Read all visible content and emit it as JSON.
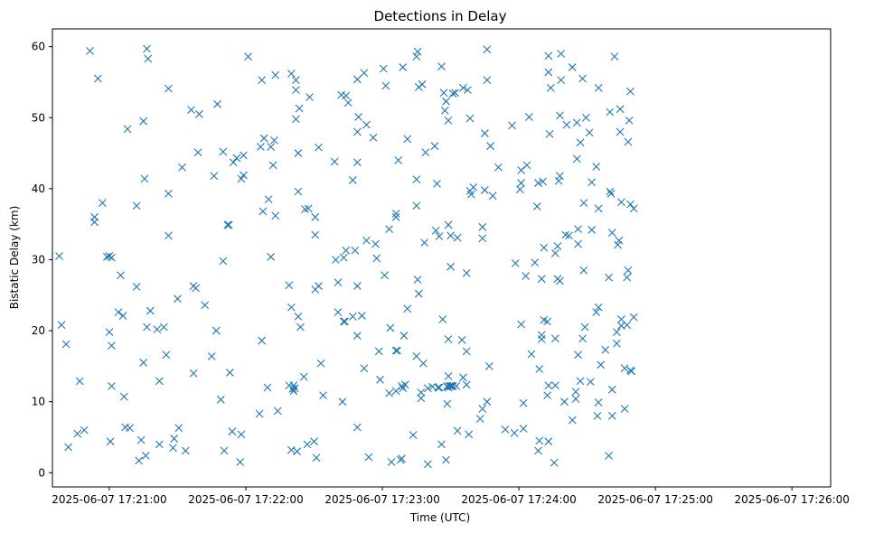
{
  "chart_data": {
    "type": "scatter",
    "title": "Detections in Delay",
    "xlabel": "Time (UTC)",
    "ylabel": "Bistatic Delay (km)",
    "marker": "x",
    "color": "#1f77b4",
    "x_unit": "seconds after 2025-06-07 17:21:00",
    "xlim": [
      -25,
      317
    ],
    "ylim": [
      -2,
      62.5
    ],
    "x_ticks": [
      {
        "value": 0,
        "label": "2025-06-07 17:21:00"
      },
      {
        "value": 60,
        "label": "2025-06-07 17:22:00"
      },
      {
        "value": 120,
        "label": "2025-06-07 17:23:00"
      },
      {
        "value": 180,
        "label": "2025-06-07 17:24:00"
      },
      {
        "value": 240,
        "label": "2025-06-07 17:25:00"
      },
      {
        "value": 300,
        "label": "2025-06-07 17:26:00"
      }
    ],
    "y_ticks": [
      0,
      10,
      20,
      30,
      40,
      50,
      60
    ],
    "points": [
      [
        -22,
        30.5
      ],
      [
        -21,
        20.8
      ],
      [
        -19,
        18.1
      ],
      [
        -18,
        3.6
      ],
      [
        -14,
        5.5
      ],
      [
        -13,
        12.9
      ],
      [
        -11,
        6
      ],
      [
        -8.5,
        59.4
      ],
      [
        -6.5,
        36
      ],
      [
        -6.5,
        35.3
      ],
      [
        -5,
        55.5
      ],
      [
        -3,
        38
      ],
      [
        -1,
        30.4
      ],
      [
        0,
        19.8
      ],
      [
        0.5,
        4.4
      ],
      [
        0,
        30.5
      ],
      [
        1,
        30.3
      ],
      [
        1,
        12.2
      ],
      [
        1,
        17.9
      ],
      [
        4,
        22.6
      ],
      [
        5,
        27.8
      ],
      [
        6,
        22.1
      ],
      [
        6.5,
        10.7
      ],
      [
        7,
        6.4
      ],
      [
        8,
        48.4
      ],
      [
        9,
        6.3
      ],
      [
        12,
        26.2
      ],
      [
        12,
        37.6
      ],
      [
        13,
        1.7
      ],
      [
        14,
        4.6
      ],
      [
        15,
        15.5
      ],
      [
        15,
        49.5
      ],
      [
        15.5,
        41.4
      ],
      [
        16,
        2.4
      ],
      [
        16.5,
        59.7
      ],
      [
        16.5,
        20.5
      ],
      [
        17,
        58.3
      ],
      [
        18,
        22.8
      ],
      [
        21,
        20.2
      ],
      [
        22,
        12.9
      ],
      [
        22,
        4
      ],
      [
        24,
        20.5
      ],
      [
        25,
        16.6
      ],
      [
        26,
        54.1
      ],
      [
        26,
        39.3
      ],
      [
        26,
        33.4
      ],
      [
        28,
        3.5
      ],
      [
        28.5,
        4.8
      ],
      [
        30,
        24.5
      ],
      [
        30.5,
        6.3
      ],
      [
        32,
        43
      ],
      [
        33.5,
        3.1
      ],
      [
        36,
        51.1
      ],
      [
        37,
        14
      ],
      [
        37,
        26.3
      ],
      [
        38,
        26
      ],
      [
        39,
        45.1
      ],
      [
        39.5,
        50.5
      ],
      [
        42,
        23.6
      ],
      [
        45,
        16.4
      ],
      [
        46,
        41.8
      ],
      [
        47,
        20
      ],
      [
        47.5,
        51.9
      ],
      [
        49,
        10.3
      ],
      [
        50,
        29.8
      ],
      [
        50,
        45.2
      ],
      [
        50.5,
        3.1
      ],
      [
        52,
        34.9
      ],
      [
        52.5,
        34.9
      ],
      [
        53,
        14.1
      ],
      [
        54,
        5.8
      ],
      [
        54.5,
        43.7
      ],
      [
        56,
        44.3
      ],
      [
        57.5,
        1.5
      ],
      [
        58,
        41.4
      ],
      [
        58,
        5.4
      ],
      [
        59,
        41.9
      ],
      [
        59,
        44.7
      ],
      [
        61,
        58.6
      ],
      [
        66,
        8.3
      ],
      [
        66.5,
        45.9
      ],
      [
        67,
        18.6
      ],
      [
        67,
        55.3
      ],
      [
        67.5,
        36.8
      ],
      [
        68,
        47.1
      ],
      [
        69.5,
        12
      ],
      [
        70,
        38.5
      ],
      [
        71,
        30.4
      ],
      [
        71,
        45.9
      ],
      [
        72,
        43.3
      ],
      [
        72.5,
        46.8
      ],
      [
        73,
        36.2
      ],
      [
        73,
        56
      ],
      [
        74,
        8.7
      ],
      [
        79,
        12.3
      ],
      [
        79,
        26.4
      ],
      [
        80,
        56.2
      ],
      [
        80,
        23.3
      ],
      [
        80,
        3.2
      ],
      [
        80.5,
        11.8
      ],
      [
        81,
        12.3
      ],
      [
        81,
        11.5
      ],
      [
        81.5,
        11.9
      ],
      [
        82,
        55.3
      ],
      [
        82,
        53.9
      ],
      [
        82,
        49.8
      ],
      [
        82.5,
        3
      ],
      [
        83,
        39.6
      ],
      [
        83,
        22
      ],
      [
        83,
        45
      ],
      [
        83.5,
        51.3
      ],
      [
        84,
        20.5
      ],
      [
        85.5,
        13.5
      ],
      [
        86,
        37.1
      ],
      [
        87,
        4
      ],
      [
        87.5,
        37.2
      ],
      [
        88,
        52.9
      ],
      [
        90,
        4.4
      ],
      [
        90.5,
        25.8
      ],
      [
        90.5,
        33.5
      ],
      [
        90.5,
        36
      ],
      [
        91,
        2.1
      ],
      [
        92,
        26.3
      ],
      [
        92,
        45.8
      ],
      [
        93,
        15.4
      ],
      [
        94,
        10.9
      ],
      [
        99,
        43.8
      ],
      [
        99.5,
        30
      ],
      [
        100.5,
        26.8
      ],
      [
        100.5,
        22.6
      ],
      [
        102,
        53.2
      ],
      [
        102.5,
        10
      ],
      [
        103,
        30.3
      ],
      [
        103,
        21.3
      ],
      [
        103.5,
        21.3
      ],
      [
        104,
        53.1
      ],
      [
        104,
        31.3
      ],
      [
        105,
        52.1
      ],
      [
        107,
        22
      ],
      [
        107,
        41.2
      ],
      [
        108,
        31.3
      ],
      [
        109,
        43.7
      ],
      [
        109,
        55.4
      ],
      [
        109,
        48
      ],
      [
        109,
        26.3
      ],
      [
        109,
        19.3
      ],
      [
        109,
        6.4
      ],
      [
        109.5,
        50.1
      ],
      [
        111,
        22.1
      ],
      [
        112,
        56.3
      ],
      [
        112,
        14.7
      ],
      [
        113,
        49
      ],
      [
        113,
        32.7
      ],
      [
        114,
        2.2
      ],
      [
        116,
        47.2
      ],
      [
        117,
        32.2
      ],
      [
        117.5,
        30.2
      ],
      [
        118.5,
        17.1
      ],
      [
        119,
        13.1
      ],
      [
        120.5,
        56.9
      ],
      [
        121,
        27.8
      ],
      [
        121.5,
        54.5
      ],
      [
        123,
        34.3
      ],
      [
        123,
        11.2
      ],
      [
        123.5,
        20.4
      ],
      [
        124,
        1.5
      ],
      [
        126,
        36
      ],
      [
        126,
        11.5
      ],
      [
        126,
        17.2
      ],
      [
        126,
        36.5
      ],
      [
        126.5,
        17.2
      ],
      [
        127,
        44
      ],
      [
        128,
        1.8
      ],
      [
        128.5,
        2
      ],
      [
        128.5,
        12.2
      ],
      [
        129,
        57.1
      ],
      [
        129,
        11.9
      ],
      [
        129.5,
        19.3
      ],
      [
        130,
        12.4
      ],
      [
        131,
        23.1
      ],
      [
        131,
        47
      ],
      [
        133.5,
        5.3
      ],
      [
        135,
        16.4
      ],
      [
        135,
        37.6
      ],
      [
        135,
        41.3
      ],
      [
        135,
        58.6
      ],
      [
        135.5,
        27.2
      ],
      [
        135.5,
        59.3
      ],
      [
        136,
        25.2
      ],
      [
        136,
        54.3
      ],
      [
        137,
        10.5
      ],
      [
        137,
        11.3
      ],
      [
        137.5,
        54.7
      ],
      [
        138,
        15.4
      ],
      [
        138.5,
        32.4
      ],
      [
        139,
        45.1
      ],
      [
        140,
        1.2
      ],
      [
        140,
        11.9
      ],
      [
        142,
        12.1
      ],
      [
        143,
        46
      ],
      [
        143.5,
        34.1
      ],
      [
        144,
        40.7
      ],
      [
        144.5,
        12
      ],
      [
        145,
        33.3
      ],
      [
        145,
        12
      ],
      [
        146,
        4
      ],
      [
        146,
        57.2
      ],
      [
        146.5,
        21.6
      ],
      [
        147,
        53.5
      ],
      [
        147.5,
        51
      ],
      [
        148,
        52.3
      ],
      [
        148,
        1.8
      ],
      [
        148.5,
        9.7
      ],
      [
        148.5,
        12.1
      ],
      [
        148.5,
        12.2
      ],
      [
        149,
        12
      ],
      [
        149,
        13.6
      ],
      [
        149,
        18.8
      ],
      [
        149,
        34.9
      ],
      [
        149,
        49.6
      ],
      [
        149.5,
        12.2
      ],
      [
        150,
        12.2
      ],
      [
        150,
        29
      ],
      [
        150,
        33.4
      ],
      [
        150.5,
        12.2
      ],
      [
        151,
        12.2
      ],
      [
        151,
        53.4
      ],
      [
        152,
        53.5
      ],
      [
        152.5,
        12.2
      ],
      [
        153,
        33.1
      ],
      [
        153,
        5.9
      ],
      [
        155,
        18.7
      ],
      [
        155.5,
        13.4
      ],
      [
        155.5,
        54.2
      ],
      [
        157,
        12.4
      ],
      [
        157,
        28.1
      ],
      [
        157,
        17.1
      ],
      [
        157.5,
        53.9
      ],
      [
        158,
        5.4
      ],
      [
        158.5,
        39.7
      ],
      [
        158.5,
        49.9
      ],
      [
        159,
        39.2
      ],
      [
        160,
        40.2
      ],
      [
        163,
        7.6
      ],
      [
        164,
        9
      ],
      [
        164,
        34.6
      ],
      [
        164,
        33
      ],
      [
        165,
        39.8
      ],
      [
        165,
        47.8
      ],
      [
        166,
        55.3
      ],
      [
        166,
        10
      ],
      [
        166,
        59.6
      ],
      [
        167,
        15
      ],
      [
        167.5,
        46
      ],
      [
        168.5,
        39
      ],
      [
        171,
        43
      ],
      [
        174,
        6.1
      ],
      [
        177,
        48.9
      ],
      [
        178,
        5.6
      ],
      [
        178.5,
        29.5
      ],
      [
        180.5,
        39.9
      ],
      [
        181,
        20.9
      ],
      [
        181,
        42.6
      ],
      [
        181,
        40.8
      ],
      [
        182,
        9.8
      ],
      [
        182,
        6.2
      ],
      [
        183,
        27.7
      ],
      [
        183.5,
        43.3
      ],
      [
        184.5,
        50.1
      ],
      [
        185.5,
        16.7
      ],
      [
        187,
        29.6
      ],
      [
        188,
        37.5
      ],
      [
        188.5,
        3.1
      ],
      [
        188.5,
        40.8
      ],
      [
        189,
        4.5
      ],
      [
        189,
        14.6
      ],
      [
        190,
        18.8
      ],
      [
        190,
        19.4
      ],
      [
        190,
        27.3
      ],
      [
        190.5,
        41
      ],
      [
        191,
        21.5
      ],
      [
        191,
        31.7
      ],
      [
        192.5,
        10.9
      ],
      [
        192.5,
        21.3
      ],
      [
        193,
        56.4
      ],
      [
        193,
        12.3
      ],
      [
        193,
        4.4
      ],
      [
        193,
        58.7
      ],
      [
        193.5,
        47.7
      ],
      [
        194,
        54.2
      ],
      [
        195.5,
        1.4
      ],
      [
        196,
        18.9
      ],
      [
        196,
        30.9
      ],
      [
        196,
        12.3
      ],
      [
        197,
        31.9
      ],
      [
        197,
        27.3
      ],
      [
        197.5,
        41.1
      ],
      [
        198,
        27
      ],
      [
        198,
        41.8
      ],
      [
        198,
        50.3
      ],
      [
        198.5,
        55.3
      ],
      [
        198.5,
        59
      ],
      [
        200,
        10
      ],
      [
        200.5,
        33.5
      ],
      [
        201,
        49
      ],
      [
        202,
        33.4
      ],
      [
        203.5,
        57.1
      ],
      [
        203.5,
        7.4
      ],
      [
        205,
        11.4
      ],
      [
        205,
        10.4
      ],
      [
        205.5,
        44.2
      ],
      [
        205.5,
        49.3
      ],
      [
        206,
        34.3
      ],
      [
        206,
        16.6
      ],
      [
        206,
        32.2
      ],
      [
        207,
        46.5
      ],
      [
        207,
        12.9
      ],
      [
        208,
        55.5
      ],
      [
        208,
        18.9
      ],
      [
        208.5,
        28.5
      ],
      [
        208.5,
        38
      ],
      [
        209,
        20.5
      ],
      [
        209.5,
        50
      ],
      [
        211,
        47.9
      ],
      [
        211.5,
        12.8
      ],
      [
        212,
        40.9
      ],
      [
        212,
        34.2
      ],
      [
        214,
        43.1
      ],
      [
        214,
        22.6
      ],
      [
        214.5,
        8
      ],
      [
        215,
        23.3
      ],
      [
        215,
        54.2
      ],
      [
        215,
        37.2
      ],
      [
        215,
        9.9
      ],
      [
        216,
        15.2
      ],
      [
        218,
        17.3
      ],
      [
        219.5,
        27.5
      ],
      [
        219.5,
        2.4
      ],
      [
        220,
        50.8
      ],
      [
        220,
        39.6
      ],
      [
        220.5,
        39.3
      ],
      [
        221,
        33.8
      ],
      [
        221,
        11.7
      ],
      [
        221,
        8
      ],
      [
        222,
        58.6
      ],
      [
        223,
        18.2
      ],
      [
        223,
        19.8
      ],
      [
        223.5,
        32.1
      ],
      [
        224,
        32.7
      ],
      [
        224.5,
        51.2
      ],
      [
        224.5,
        48
      ],
      [
        225,
        38.1
      ],
      [
        225,
        20.7
      ],
      [
        225,
        21.6
      ],
      [
        226.5,
        14.7
      ],
      [
        226.5,
        9
      ],
      [
        227.5,
        20.8
      ],
      [
        227.5,
        27.5
      ],
      [
        228,
        28.5
      ],
      [
        228,
        46.6
      ],
      [
        228.5,
        49.6
      ],
      [
        229,
        14.4
      ],
      [
        229,
        37.8
      ],
      [
        229,
        53.7
      ],
      [
        229.5,
        14.3
      ],
      [
        230.5,
        37.2
      ],
      [
        230.5,
        21.9
      ]
    ]
  }
}
